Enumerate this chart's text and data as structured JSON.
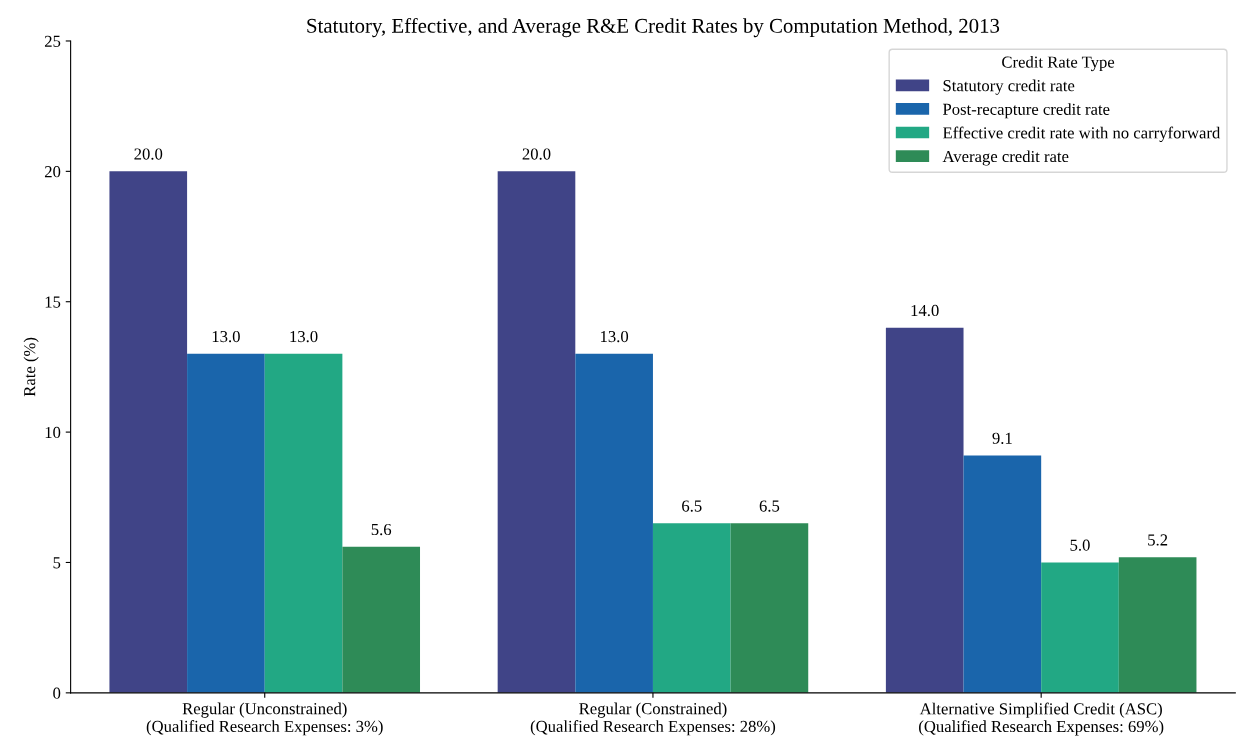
{
  "chart_data": {
    "type": "bar",
    "title": "Statutory, Effective, and Average R&E Credit Rates by Computation Method, 2013",
    "ylabel": "Rate (%)",
    "legend_title": "Credit Rate Type",
    "legend": "top right",
    "categories": [
      "Regular (Unconstrained)\n(Qualified Research Expenses: 3%)",
      "Regular (Constrained)\n(Qualified Research Expenses: 28%)",
      "Alternative Simplified Credit (ASC)\n(Qualified Research Expenses: 69%)"
    ],
    "ylim": [
      0,
      25
    ],
    "yticks": [
      0,
      5,
      10,
      15,
      20,
      25
    ],
    "grid": false,
    "series": [
      {
        "name": "Statutory credit rate",
        "color": "#404487",
        "values": [
          20.0,
          20.0,
          14.0
        ],
        "value_labels": [
          "20.0",
          "20.0",
          "14.0"
        ]
      },
      {
        "name": "Post-recapture credit rate",
        "color": "#1a65ab",
        "values": [
          13.0,
          13.0,
          9.1
        ],
        "value_labels": [
          "13.0",
          "13.0",
          "9.1"
        ]
      },
      {
        "name": "Effective credit rate with no carryforward",
        "color": "#22a884",
        "values": [
          13.0,
          6.5,
          5.0
        ],
        "value_labels": [
          "13.0",
          "6.5",
          "5.0"
        ]
      },
      {
        "name": "Average credit rate",
        "color": "#2e8b57",
        "values": [
          5.6,
          6.5,
          5.2
        ],
        "value_labels": [
          "5.6",
          "6.5",
          "5.2"
        ]
      }
    ]
  }
}
